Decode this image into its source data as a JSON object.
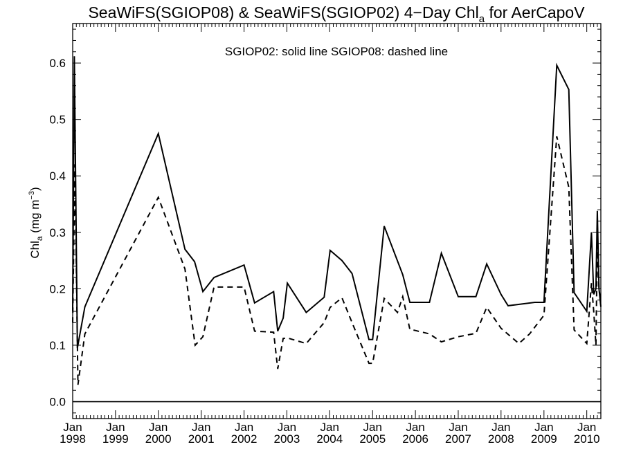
{
  "chart_data": {
    "type": "line",
    "title": {
      "main": "SeaWiFS(SGIOP08) & SeaWiFS(SGIOP02) 4−Day Chl",
      "sub": "a",
      "tail": " for AerCapoV"
    },
    "annotation": "SGIOP02: solid line   SGIOP08: dashed line",
    "ylabel": {
      "main": "Chl",
      "sub": "a",
      "tail": " (mg m",
      "sup": "−3",
      "close": ")"
    },
    "xlim": [
      "1998-01-01",
      "2010-05-01"
    ],
    "ylim": [
      -0.03,
      0.67
    ],
    "xticks": [
      {
        "date": "1998-01-01",
        "month": "Jan",
        "year": "1998"
      },
      {
        "date": "1999-01-01",
        "month": "Jan",
        "year": "1999"
      },
      {
        "date": "2000-01-01",
        "month": "Jan",
        "year": "2000"
      },
      {
        "date": "2001-01-01",
        "month": "Jan",
        "year": "2001"
      },
      {
        "date": "2002-01-01",
        "month": "Jan",
        "year": "2002"
      },
      {
        "date": "2003-01-01",
        "month": "Jan",
        "year": "2003"
      },
      {
        "date": "2004-01-01",
        "month": "Jan",
        "year": "2004"
      },
      {
        "date": "2005-01-01",
        "month": "Jan",
        "year": "2005"
      },
      {
        "date": "2006-01-01",
        "month": "Jan",
        "year": "2006"
      },
      {
        "date": "2007-01-01",
        "month": "Jan",
        "year": "2007"
      },
      {
        "date": "2008-01-01",
        "month": "Jan",
        "year": "2008"
      },
      {
        "date": "2009-01-01",
        "month": "Jan",
        "year": "2009"
      },
      {
        "date": "2010-01-01",
        "month": "Jan",
        "year": "2010"
      }
    ],
    "yticks": [
      "0.0",
      "0.1",
      "0.2",
      "0.3",
      "0.4",
      "0.5",
      "0.6"
    ],
    "grid": false,
    "zero_line": true,
    "series": [
      {
        "name": "SGIOP02",
        "style": "solid",
        "color": "#000000",
        "points": [
          [
            "1998-01-01",
            0.16
          ],
          [
            "1998-01-15",
            0.612
          ],
          [
            "1998-02-10",
            0.095
          ],
          [
            "1998-04-15",
            0.168
          ],
          [
            "2000-01-01",
            0.475
          ],
          [
            "2000-08-15",
            0.27
          ],
          [
            "2000-11-05",
            0.248
          ],
          [
            "2001-01-15",
            0.195
          ],
          [
            "2001-04-20",
            0.22
          ],
          [
            "2002-01-01",
            0.242
          ],
          [
            "2002-04-01",
            0.175
          ],
          [
            "2002-09-10",
            0.195
          ],
          [
            "2002-10-15",
            0.125
          ],
          [
            "2002-12-01",
            0.148
          ],
          [
            "2003-01-05",
            0.21
          ],
          [
            "2003-06-15",
            0.158
          ],
          [
            "2003-11-15",
            0.185
          ],
          [
            "2004-01-05",
            0.268
          ],
          [
            "2004-04-15",
            0.25
          ],
          [
            "2004-07-10",
            0.227
          ],
          [
            "2004-12-01",
            0.11
          ],
          [
            "2005-01-01",
            0.11
          ],
          [
            "2005-04-10",
            0.311
          ],
          [
            "2005-09-15",
            0.225
          ],
          [
            "2005-11-15",
            0.176
          ],
          [
            "2006-01-01",
            0.176
          ],
          [
            "2006-05-01",
            0.176
          ],
          [
            "2006-08-10",
            0.263
          ],
          [
            "2007-01-01",
            0.186
          ],
          [
            "2007-06-01",
            0.186
          ],
          [
            "2007-09-01",
            0.244
          ],
          [
            "2008-01-01",
            0.19
          ],
          [
            "2008-03-01",
            0.17
          ],
          [
            "2008-10-15",
            0.176
          ],
          [
            "2009-01-01",
            0.176
          ],
          [
            "2009-04-20",
            0.596
          ],
          [
            "2009-08-01",
            0.553
          ],
          [
            "2009-09-15",
            0.193
          ],
          [
            "2010-01-01",
            0.16
          ],
          [
            "2010-02-10",
            0.3
          ],
          [
            "2010-03-01",
            0.19
          ],
          [
            "2010-03-20",
            0.2
          ],
          [
            "2010-04-01",
            0.338
          ],
          [
            "2010-04-15",
            0.2
          ],
          [
            "2010-05-01",
            0.168
          ]
        ]
      },
      {
        "name": "SGIOP08",
        "style": "dashed",
        "color": "#000000",
        "points": [
          [
            "1998-01-01",
            0.14
          ],
          [
            "1998-01-20",
            0.42
          ],
          [
            "1998-02-15",
            0.03
          ],
          [
            "1998-04-15",
            0.12
          ],
          [
            "2000-01-01",
            0.362
          ],
          [
            "2000-08-15",
            0.235
          ],
          [
            "2000-11-10",
            0.1
          ],
          [
            "2001-01-15",
            0.115
          ],
          [
            "2001-04-20",
            0.203
          ],
          [
            "2002-01-01",
            0.203
          ],
          [
            "2002-04-01",
            0.125
          ],
          [
            "2002-09-10",
            0.123
          ],
          [
            "2002-10-15",
            0.058
          ],
          [
            "2002-12-01",
            0.112
          ],
          [
            "2003-01-05",
            0.113
          ],
          [
            "2003-06-15",
            0.103
          ],
          [
            "2003-11-15",
            0.14
          ],
          [
            "2004-01-05",
            0.167
          ],
          [
            "2004-04-15",
            0.184
          ],
          [
            "2004-07-10",
            0.14
          ],
          [
            "2004-12-01",
            0.068
          ],
          [
            "2005-01-01",
            0.068
          ],
          [
            "2005-04-10",
            0.183
          ],
          [
            "2005-08-01",
            0.158
          ],
          [
            "2005-09-15",
            0.186
          ],
          [
            "2005-11-15",
            0.128
          ],
          [
            "2006-01-01",
            0.126
          ],
          [
            "2006-05-01",
            0.12
          ],
          [
            "2006-08-10",
            0.106
          ],
          [
            "2007-01-01",
            0.115
          ],
          [
            "2007-06-01",
            0.121
          ],
          [
            "2007-09-01",
            0.167
          ],
          [
            "2008-01-01",
            0.13
          ],
          [
            "2008-06-01",
            0.103
          ],
          [
            "2008-09-01",
            0.12
          ],
          [
            "2009-01-01",
            0.153
          ],
          [
            "2009-04-20",
            0.47
          ],
          [
            "2009-08-01",
            0.38
          ],
          [
            "2009-09-15",
            0.127
          ],
          [
            "2010-01-01",
            0.103
          ],
          [
            "2010-02-10",
            0.21
          ],
          [
            "2010-03-01",
            0.16
          ],
          [
            "2010-03-20",
            0.1
          ],
          [
            "2010-04-01",
            0.285
          ],
          [
            "2010-04-15",
            0.2
          ],
          [
            "2010-05-01",
            0.178
          ]
        ]
      }
    ]
  }
}
